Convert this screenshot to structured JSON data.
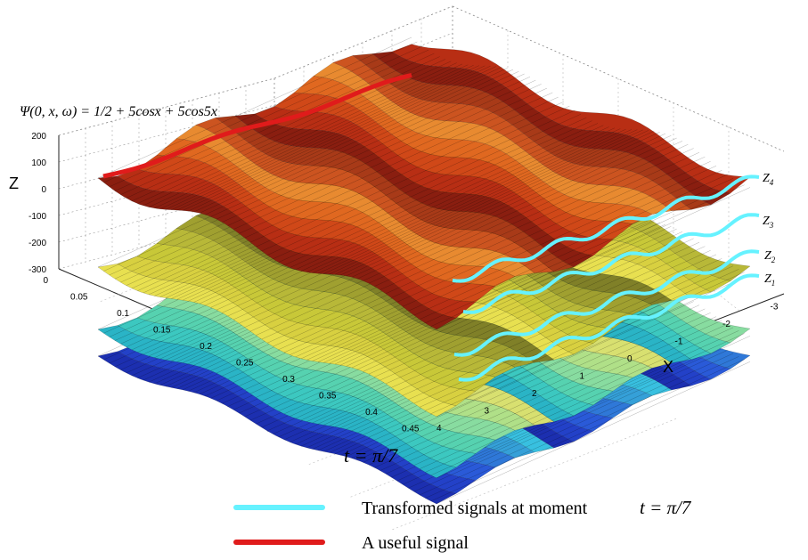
{
  "chart_data": {
    "type": "surface",
    "title": "Ψ(0, x, ω) = 1/2 + 5cosx + 5cos5x",
    "zlabel": "Z",
    "xlabel": "X",
    "tlabel": "t = π/7",
    "z_ticks": [
      "200",
      "100",
      "0",
      "-100",
      "-200",
      "-300"
    ],
    "zlim": [
      -300,
      200
    ],
    "t_ticks": [
      "0",
      "0.05",
      "0.1",
      "0.15",
      "0.2",
      "0.25",
      "0.3",
      "0.35",
      "0.4",
      "0.45"
    ],
    "tlim": [
      0,
      0.45
    ],
    "x_ticks": [
      "4",
      "3",
      "2",
      "1",
      "0",
      "-1",
      "-2",
      "-3"
    ],
    "xlim": [
      -4,
      4
    ],
    "grid": true,
    "surface_labels": [
      {
        "name": "Z",
        "sub": "4"
      },
      {
        "name": "Z",
        "sub": "3"
      },
      {
        "name": "Z",
        "sub": "2"
      },
      {
        "name": "Z",
        "sub": "1"
      }
    ],
    "legend": [
      {
        "label": "Transformed signals  at  moment",
        "math": "t = π/7",
        "color": "#66f2ff"
      },
      {
        "label": "A  useful  signal",
        "math": "",
        "color": "#e01b1b"
      }
    ]
  },
  "colors": {
    "cyan": "#66f2ff",
    "red": "#e01b1b"
  }
}
